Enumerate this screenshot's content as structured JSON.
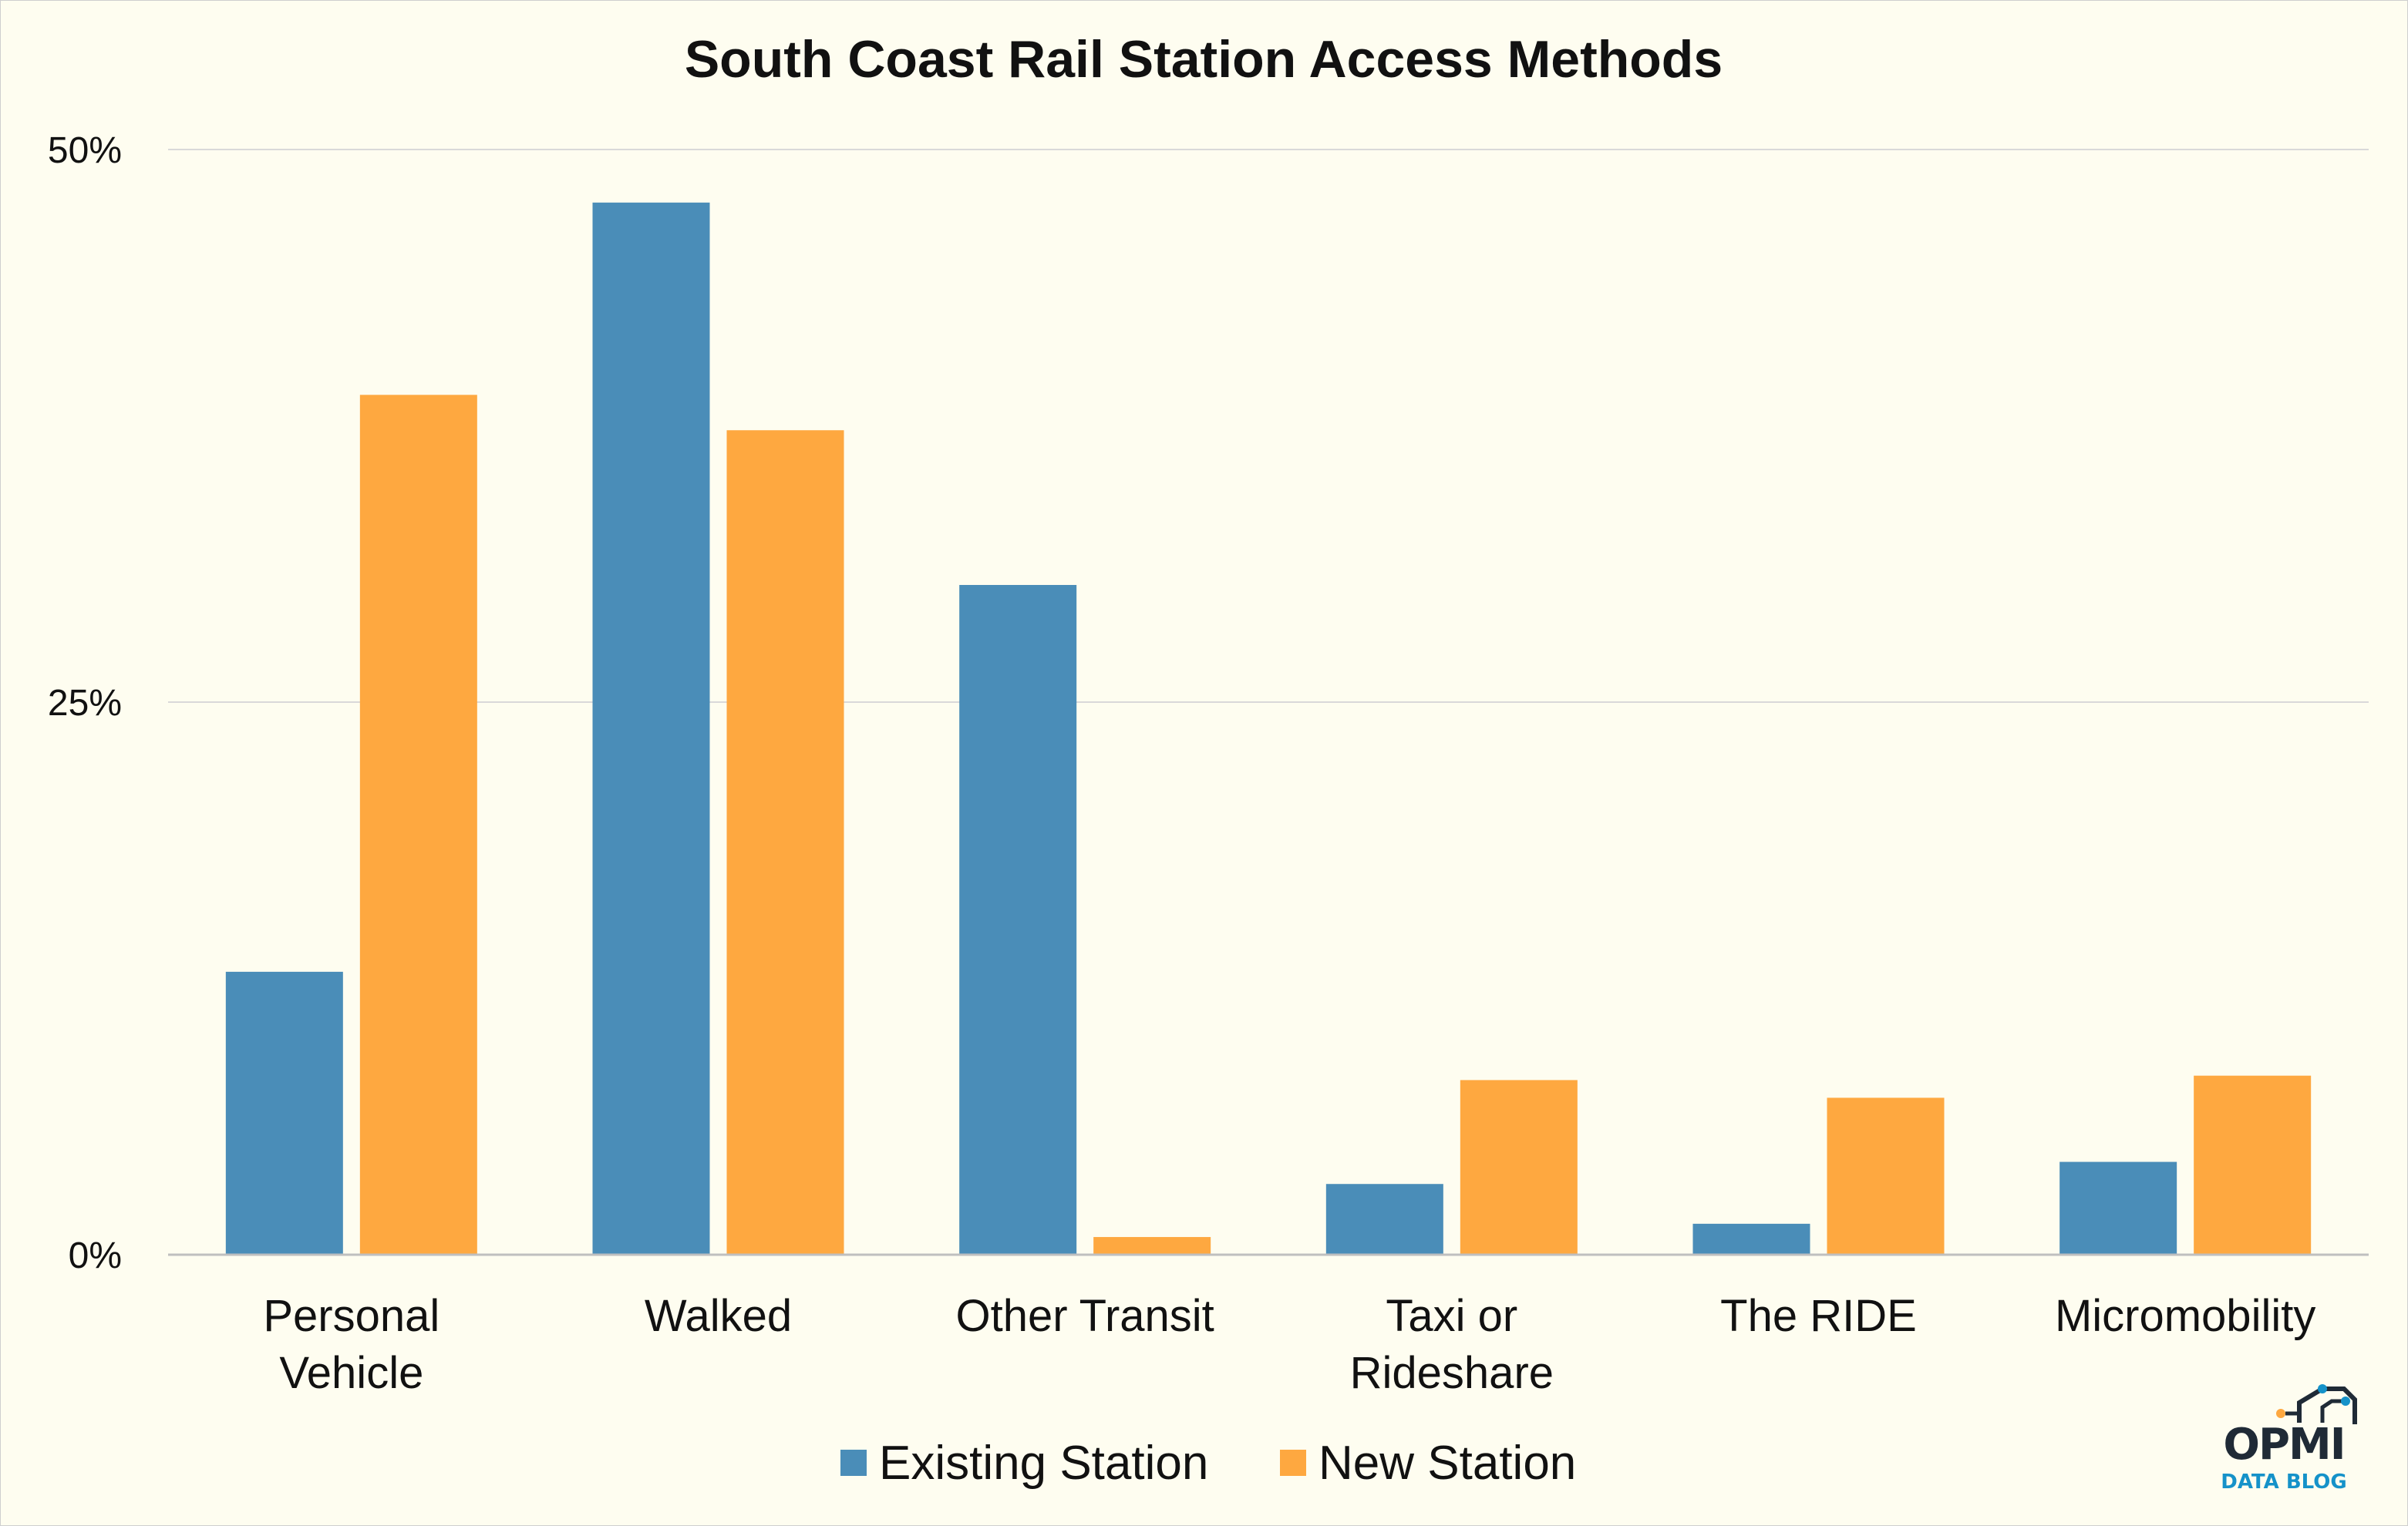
{
  "chart_data": {
    "type": "bar",
    "title": "South Coast Rail Station Access Methods",
    "categories": [
      "Personal Vehicle",
      "Walked",
      "Other Transit",
      "Taxi or Rideshare",
      "The RIDE",
      "Micromobility"
    ],
    "category_lines": [
      [
        "Personal",
        "Vehicle"
      ],
      [
        "Walked"
      ],
      [
        "Other Transit"
      ],
      [
        "Taxi or",
        "Rideshare"
      ],
      [
        "The RIDE"
      ],
      [
        "Micromobility"
      ]
    ],
    "series": [
      {
        "name": "Existing Station",
        "color": "#4a8db8",
        "values": [
          12.8,
          47.6,
          30.3,
          3.2,
          1.4,
          4.2
        ]
      },
      {
        "name": "New Station",
        "color": "#fea840",
        "values": [
          38.9,
          37.3,
          0.8,
          7.9,
          7.1,
          8.1
        ]
      }
    ],
    "ylim": [
      0,
      50
    ],
    "yticks": [
      0,
      25,
      50
    ],
    "ytick_labels": [
      "0%",
      "25%",
      "50%"
    ],
    "xlabel": "",
    "ylabel": "",
    "grid": true,
    "legend_position": "bottom-center"
  },
  "logo": {
    "wordmark": "OPMI",
    "subtitle": "DATA BLOG"
  }
}
